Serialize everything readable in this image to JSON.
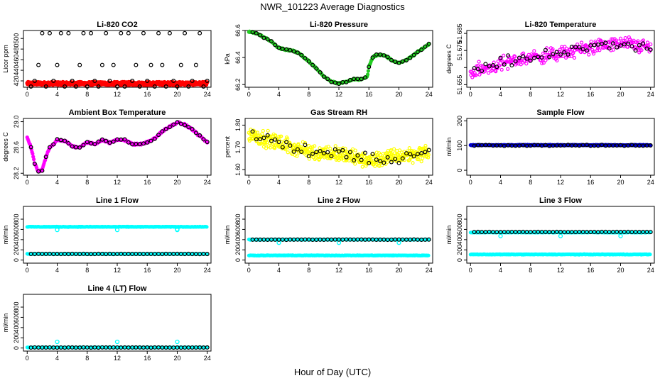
{
  "page": {
    "title": "NWR_101223  Average Diagnostics",
    "x_caption": "Hour of Day (UTC)"
  },
  "colors": {
    "hourly": "#000000",
    "red": "#ff0000",
    "green": "#22cc22",
    "magenta": "#ff00ff",
    "yellow": "#ffff00",
    "blue": "#0000cc",
    "cyan": "#00ffff"
  },
  "chart_data": [
    {
      "id": "co2",
      "type": "scatter",
      "title": "Li-820 CO2",
      "ylabel": "Licor ppm",
      "xlim": [
        -0.5,
        24.5
      ],
      "xticks": [
        0,
        4,
        8,
        12,
        16,
        20,
        24
      ],
      "ylim": [
        408,
        515
      ],
      "yticks": [
        420,
        440,
        460,
        480,
        500
      ],
      "minute_color": "red",
      "minute_band": [
        412,
        418
      ],
      "hourly": [
        [
          0.5,
          409
        ],
        [
          1,
          420
        ],
        [
          1.5,
          450
        ],
        [
          2,
          510
        ],
        [
          2.5,
          409
        ],
        [
          3,
          510
        ],
        [
          3.5,
          420
        ],
        [
          4,
          450
        ],
        [
          4.5,
          510
        ],
        [
          5,
          409
        ],
        [
          5.5,
          510
        ],
        [
          6,
          420
        ],
        [
          6.5,
          409
        ],
        [
          7,
          450
        ],
        [
          7.5,
          510
        ],
        [
          8,
          409
        ],
        [
          8.5,
          510
        ],
        [
          9,
          420
        ],
        [
          9.5,
          409
        ],
        [
          10,
          450
        ],
        [
          10.5,
          510
        ],
        [
          11,
          420
        ],
        [
          11.5,
          450
        ],
        [
          12,
          409
        ],
        [
          12.5,
          510
        ],
        [
          13,
          409
        ],
        [
          13.5,
          510
        ],
        [
          14,
          420
        ],
        [
          14.5,
          450
        ],
        [
          15,
          409
        ],
        [
          15.5,
          510
        ],
        [
          16,
          420
        ],
        [
          16.5,
          450
        ],
        [
          17,
          409
        ],
        [
          17.5,
          510
        ],
        [
          18,
          450
        ],
        [
          18.5,
          409
        ],
        [
          19,
          510
        ],
        [
          19.5,
          420
        ],
        [
          20,
          409
        ],
        [
          20.5,
          450
        ],
        [
          21,
          510
        ],
        [
          21.5,
          409
        ],
        [
          22,
          420
        ],
        [
          22.5,
          450
        ],
        [
          23,
          510
        ],
        [
          23.5,
          409
        ],
        [
          24,
          420
        ]
      ]
    },
    {
      "id": "pressure",
      "type": "scatter",
      "title": "Li-820 Pressure",
      "ylabel": "kPa",
      "xlim": [
        -0.5,
        24.5
      ],
      "xticks": [
        0,
        4,
        8,
        12,
        16,
        20,
        24
      ],
      "ylim": [
        66.18,
        66.6
      ],
      "yticks": [
        66.2,
        66.4,
        66.6
      ],
      "minute_color": "green",
      "minute_line": [
        [
          0,
          66.59
        ],
        [
          1,
          66.58
        ],
        [
          2,
          66.55
        ],
        [
          3,
          66.52
        ],
        [
          4,
          66.47
        ],
        [
          5,
          66.46
        ],
        [
          6,
          66.45
        ],
        [
          7,
          66.42
        ],
        [
          8,
          66.37
        ],
        [
          9,
          66.32
        ],
        [
          10,
          66.26
        ],
        [
          11,
          66.22
        ],
        [
          12,
          66.21
        ],
        [
          13,
          66.22
        ],
        [
          14,
          66.24
        ],
        [
          15,
          66.24
        ],
        [
          15.8,
          66.26
        ],
        [
          16,
          66.33
        ],
        [
          16.5,
          66.4
        ],
        [
          17,
          66.42
        ],
        [
          18,
          66.42
        ],
        [
          19,
          66.38
        ],
        [
          20,
          66.36
        ],
        [
          21,
          66.38
        ],
        [
          22,
          66.42
        ],
        [
          23,
          66.46
        ],
        [
          24,
          66.5
        ]
      ],
      "minute_noise": 0.008
    },
    {
      "id": "temp",
      "type": "scatter",
      "title": "Li-820 Temperature",
      "ylabel": "degrees C",
      "xlim": [
        -0.5,
        24.5
      ],
      "xticks": [
        0,
        4,
        8,
        12,
        16,
        20,
        24
      ],
      "ylim": [
        51.6535,
        51.6867
      ],
      "yticks": [
        51.655,
        51.665,
        51.675,
        51.685
      ],
      "tick_labels": [
        "51.655",
        "",
        "51.675",
        "51.685"
      ],
      "minute_color": "magenta",
      "minute_line": [
        [
          0,
          51.662
        ],
        [
          4,
          51.667
        ],
        [
          8,
          51.671
        ],
        [
          12,
          51.673
        ],
        [
          16,
          51.677
        ],
        [
          20,
          51.679
        ],
        [
          24,
          51.677
        ]
      ],
      "minute_noise": 0.006
    },
    {
      "id": "ambient",
      "type": "scatter",
      "title": "Ambient Box Temperature",
      "ylabel": "degrees C",
      "xlim": [
        -0.5,
        24.5
      ],
      "xticks": [
        0,
        4,
        8,
        12,
        16,
        20,
        24
      ],
      "ylim": [
        28.17,
        29.05
      ],
      "yticks": [
        28.2,
        28.6,
        29.0
      ],
      "tick_labels": [
        "28.2",
        "28.6",
        "29.0"
      ],
      "minute_color": "magenta",
      "minute_line": [
        [
          0,
          28.75
        ],
        [
          0.5,
          28.6
        ],
        [
          1,
          28.35
        ],
        [
          1.5,
          28.22
        ],
        [
          2,
          28.25
        ],
        [
          2.5,
          28.45
        ],
        [
          3,
          28.6
        ],
        [
          3.5,
          28.65
        ],
        [
          4,
          28.72
        ],
        [
          5,
          28.7
        ],
        [
          6,
          28.62
        ],
        [
          7,
          28.6
        ],
        [
          8,
          28.68
        ],
        [
          9,
          28.65
        ],
        [
          10,
          28.72
        ],
        [
          11,
          28.67
        ],
        [
          12,
          28.72
        ],
        [
          13,
          28.72
        ],
        [
          14,
          28.65
        ],
        [
          15,
          28.65
        ],
        [
          16,
          28.68
        ],
        [
          17,
          28.74
        ],
        [
          18,
          28.85
        ],
        [
          19,
          28.92
        ],
        [
          20,
          28.99
        ],
        [
          21,
          28.95
        ],
        [
          22,
          28.88
        ],
        [
          23,
          28.78
        ],
        [
          24,
          28.68
        ]
      ],
      "minute_noise": 0.02
    },
    {
      "id": "rh",
      "type": "scatter",
      "title": "Gas Stream RH",
      "ylabel": "percent",
      "xlim": [
        -0.5,
        24.5
      ],
      "xticks": [
        0,
        4,
        8,
        12,
        16,
        20,
        24
      ],
      "ylim": [
        1.575,
        1.83
      ],
      "yticks": [
        1.6,
        1.7,
        1.8
      ],
      "tick_labels": [
        "1.60",
        "1.70",
        "1.80"
      ],
      "minute_color": "yellow",
      "minute_line": [
        [
          0,
          1.76
        ],
        [
          2,
          1.74
        ],
        [
          4,
          1.72
        ],
        [
          8,
          1.68
        ],
        [
          12,
          1.67
        ],
        [
          16,
          1.64
        ],
        [
          20,
          1.66
        ],
        [
          24,
          1.68
        ]
      ],
      "minute_noise": 0.05
    },
    {
      "id": "sampleflow",
      "type": "scatter",
      "title": "Sample Flow",
      "ylabel": "ml/min",
      "xlim": [
        -0.5,
        24.5
      ],
      "xticks": [
        0,
        4,
        8,
        12,
        16,
        20,
        24
      ],
      "ylim": [
        -20,
        210
      ],
      "yticks": [
        0,
        100,
        200
      ],
      "minute_color": "blue",
      "minute_line": [
        [
          0,
          102
        ],
        [
          24,
          102
        ]
      ],
      "minute_noise": 2,
      "hourly_level": 101
    },
    {
      "id": "line1",
      "type": "scatter",
      "title": "Line 1 Flow",
      "ylabel": "ml/min",
      "xlim": [
        -0.5,
        24.5
      ],
      "xticks": [
        0,
        4,
        8,
        12,
        16,
        20,
        24
      ],
      "ylim": [
        -60,
        1050
      ],
      "yticks": [
        0,
        200,
        400,
        600,
        800
      ],
      "minute_color": "cyan",
      "levels": [
        650,
        120
      ],
      "spikes": [
        [
          4,
          590
        ],
        [
          12,
          590
        ],
        [
          20,
          590
        ],
        [
          20,
          600
        ]
      ],
      "hourly_level": 120
    },
    {
      "id": "line2",
      "type": "scatter",
      "title": "Line 2 Flow",
      "ylabel": "ml/min",
      "xlim": [
        -0.5,
        24.5
      ],
      "xticks": [
        0,
        4,
        8,
        12,
        16,
        20,
        24
      ],
      "ylim": [
        -60,
        1050
      ],
      "yticks": [
        0,
        200,
        400,
        600,
        800
      ],
      "minute_color": "cyan",
      "levels": [
        400,
        90
      ],
      "spikes": [
        [
          4,
          340
        ],
        [
          12,
          340
        ],
        [
          20,
          340
        ]
      ],
      "hourly_level": 400
    },
    {
      "id": "line3",
      "type": "scatter",
      "title": "Line 3 Flow",
      "ylabel": "ml/min",
      "xlim": [
        -0.5,
        24.5
      ],
      "xticks": [
        0,
        4,
        8,
        12,
        16,
        20,
        24
      ],
      "ylim": [
        -60,
        1050
      ],
      "yticks": [
        0,
        200,
        400,
        600,
        800
      ],
      "minute_color": "cyan",
      "levels": [
        540,
        110
      ],
      "spikes": [
        [
          4,
          470
        ],
        [
          12,
          470
        ],
        [
          20,
          470
        ]
      ],
      "hourly_level": 550
    },
    {
      "id": "line4",
      "type": "scatter",
      "title": "Line 4 (LT) Flow",
      "ylabel": "ml/min",
      "xlim": [
        -0.5,
        24.5
      ],
      "xticks": [
        0,
        4,
        8,
        12,
        16,
        20,
        24
      ],
      "ylim": [
        -60,
        1050
      ],
      "yticks": [
        0,
        200,
        400,
        600,
        800
      ],
      "minute_color": "cyan",
      "levels": [
        10
      ],
      "spikes": [
        [
          4,
          120
        ],
        [
          12,
          120
        ],
        [
          20,
          120
        ]
      ],
      "hourly_level": 10
    }
  ]
}
